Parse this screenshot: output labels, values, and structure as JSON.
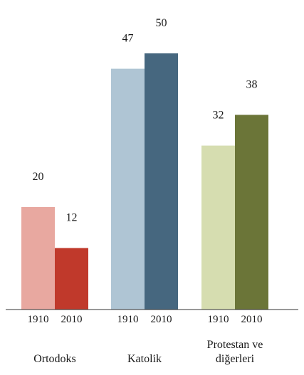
{
  "chart_data": {
    "type": "bar",
    "title": "",
    "xlabel": "",
    "ylabel": "",
    "ylim": [
      0,
      50
    ],
    "grid": false,
    "legend": "none",
    "groups": [
      {
        "label_lines": [
          "Ortodoks"
        ],
        "bars": [
          {
            "year": "1910",
            "value": 20,
            "label": "20",
            "color": "#e8a8a0"
          },
          {
            "year": "2010",
            "value": 12,
            "label": "12",
            "color": "#c0392b"
          }
        ]
      },
      {
        "label_lines": [
          "Katolik"
        ],
        "bars": [
          {
            "year": "1910",
            "value": 47,
            "label": "47",
            "color": "#afc5d4"
          },
          {
            "year": "2010",
            "value": 50,
            "label": "50",
            "color": "#46677f"
          }
        ]
      },
      {
        "label_lines": [
          "Protestan ve",
          "diğerleri"
        ],
        "bars": [
          {
            "year": "1910",
            "value": 32,
            "label": "32",
            "color": "#d6ddb0"
          },
          {
            "year": "2010",
            "value": 38,
            "label": "38",
            "color": "#6b7538"
          }
        ]
      }
    ]
  }
}
